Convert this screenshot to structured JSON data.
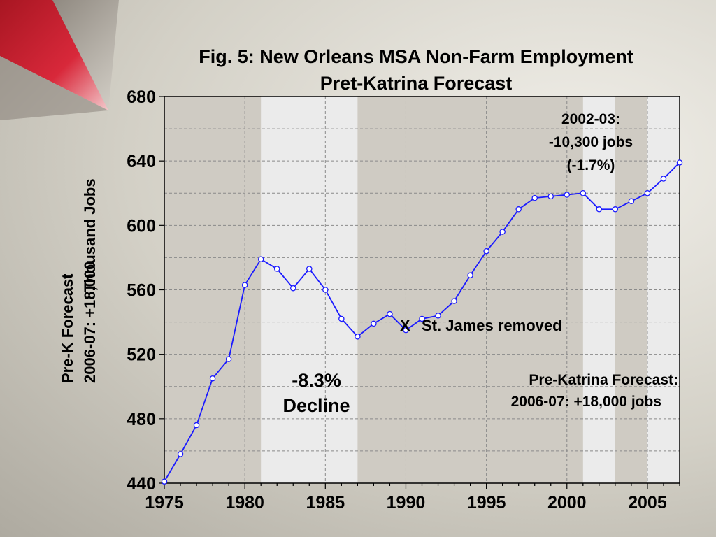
{
  "chart_data": {
    "type": "line",
    "title_line1": "Fig. 5:  New Orleans MSA Non-Farm Employment",
    "title_line2": "Pret-Katrina Forecast",
    "ylabel_line1": "Pre-K Forecast",
    "ylabel_line2": "2006-07: +18,000",
    "ylabel_line3": "Thousand Jobs",
    "xlim": [
      1975,
      2007
    ],
    "ylim": [
      440,
      680
    ],
    "xticks": [
      1975,
      1980,
      1985,
      1990,
      1995,
      2000,
      2005
    ],
    "yticks": [
      440,
      480,
      520,
      560,
      600,
      640,
      680
    ],
    "grid": true,
    "recession_bands": [
      [
        1981,
        1987
      ],
      [
        2001,
        2003
      ],
      [
        2005,
        2007
      ]
    ],
    "series": [
      {
        "color": "#1a1aff",
        "x": [
          1975,
          1976,
          1977,
          1978,
          1979,
          1980,
          1981,
          1982,
          1983,
          1984,
          1985,
          1986,
          1987,
          1988,
          1989,
          1990,
          1991,
          1992,
          1993,
          1994,
          1995,
          1996,
          1997,
          1998,
          1999,
          2000,
          2001,
          2002,
          2003,
          2004,
          2005,
          2006,
          2007
        ],
        "y": [
          441,
          458,
          476,
          505,
          517,
          563,
          579,
          573,
          561,
          573,
          560,
          542,
          531,
          539,
          545,
          535,
          542,
          544,
          553,
          569,
          584,
          596,
          610,
          617,
          618,
          619,
          620,
          610,
          610,
          615,
          620,
          629,
          639
        ]
      }
    ],
    "annotations": {
      "top_right": [
        "2002-03:",
        "-10,300 jobs",
        "(-1.7%)"
      ],
      "decline": [
        "-8.3%",
        "Decline"
      ],
      "marker": "X",
      "st_james": "St. James removed",
      "forecast": [
        "Pre-Katrina Forecast:",
        "2006-07: +18,000 jobs"
      ]
    }
  }
}
